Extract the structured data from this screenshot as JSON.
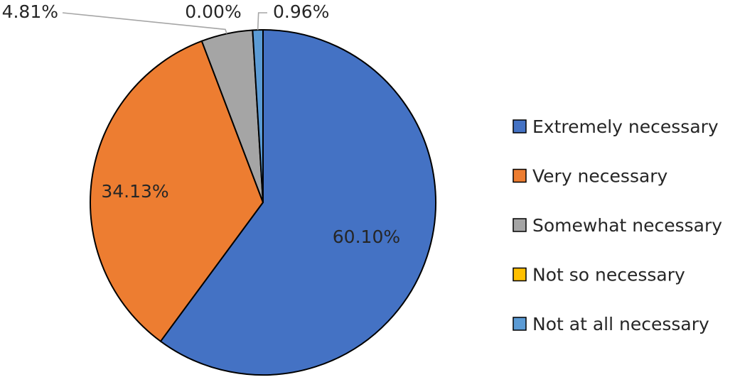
{
  "chart_data": {
    "type": "pie",
    "title": "",
    "categories": [
      "Extremely necessary",
      "Very necessary",
      "Somewhat necessary",
      "Not so necessary",
      "Not at all necessary"
    ],
    "values": [
      60.1,
      34.13,
      4.81,
      0.0,
      0.96
    ],
    "value_labels": [
      "60.10%",
      "34.13%",
      "4.81%",
      "0.00%",
      "0.96%"
    ],
    "colors": [
      "#4472C4",
      "#ED7D31",
      "#A5A5A5",
      "#FFC000",
      "#5B9BD5"
    ],
    "legend_position": "right",
    "start_angle_deg": 0,
    "direction": "clockwise",
    "label_placement": [
      "inside",
      "inside",
      "outside",
      "outside",
      "outside"
    ]
  }
}
